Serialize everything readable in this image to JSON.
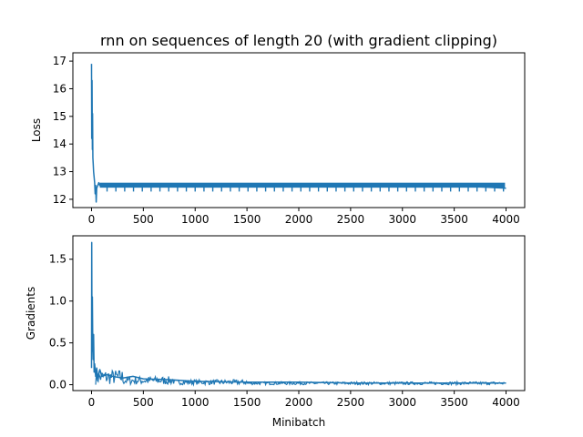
{
  "chart_data": [
    {
      "type": "line",
      "title": "rnn on sequences of length 20 (with gradient clipping)",
      "xlabel": "",
      "ylabel": "Loss",
      "xlim": [
        -180,
        4180
      ],
      "ylim": [
        11.7,
        17.3
      ],
      "xticks": [
        0,
        500,
        1000,
        1500,
        2000,
        2500,
        3000,
        3500,
        4000
      ],
      "xtick_labels": [
        "0",
        "500",
        "1000",
        "1500",
        "2000",
        "2500",
        "3000",
        "3500",
        "4000"
      ],
      "yticks": [
        12,
        13,
        14,
        15,
        16,
        17
      ],
      "ytick_labels": [
        "12",
        "13",
        "14",
        "15",
        "16",
        "17"
      ],
      "color": "#1f77b4",
      "grid": false,
      "series": [
        {
          "x": [
            0,
            2,
            5,
            8,
            10,
            13,
            16,
            20,
            25,
            30,
            35,
            40,
            45,
            50,
            60,
            70,
            80,
            100,
            150,
            200,
            300,
            400,
            500,
            750,
            1000,
            1500,
            2000,
            2500,
            3000,
            3500,
            4000
          ],
          "y": [
            16.9,
            14.2,
            16.3,
            13.8,
            15.1,
            13.5,
            13.3,
            13.0,
            12.8,
            12.6,
            12.2,
            12.5,
            11.9,
            12.4,
            12.5,
            12.6,
            12.5,
            12.5,
            12.55,
            12.5,
            12.5,
            12.5,
            12.5,
            12.5,
            12.5,
            12.5,
            12.5,
            12.5,
            12.5,
            12.5,
            12.4
          ]
        }
      ]
    },
    {
      "type": "line",
      "title": "",
      "xlabel": "Minibatch",
      "ylabel": "Gradients",
      "xlim": [
        -180,
        4180
      ],
      "ylim": [
        -0.07,
        1.78
      ],
      "xticks": [
        0,
        500,
        1000,
        1500,
        2000,
        2500,
        3000,
        3500,
        4000
      ],
      "xtick_labels": [
        "0",
        "500",
        "1000",
        "1500",
        "2000",
        "2500",
        "3000",
        "3500",
        "4000"
      ],
      "yticks": [
        0.0,
        0.5,
        1.0,
        1.5
      ],
      "ytick_labels": [
        "0.0",
        "0.5",
        "1.0",
        "1.5"
      ],
      "color": "#1f77b4",
      "grid": false,
      "series": [
        {
          "x": [
            0,
            2,
            5,
            8,
            12,
            16,
            20,
            25,
            30,
            40,
            50,
            60,
            80,
            100,
            150,
            200,
            300,
            400,
            500,
            750,
            1000,
            1500,
            2000,
            2500,
            3000,
            3500,
            4000
          ],
          "y": [
            0.2,
            1.7,
            0.4,
            1.05,
            0.5,
            0.3,
            0.6,
            0.15,
            0.25,
            0.1,
            0.2,
            0.08,
            0.18,
            0.1,
            0.12,
            0.1,
            0.08,
            0.1,
            0.07,
            0.06,
            0.04,
            0.03,
            0.03,
            0.02,
            0.02,
            0.02,
            0.02
          ]
        }
      ]
    }
  ]
}
